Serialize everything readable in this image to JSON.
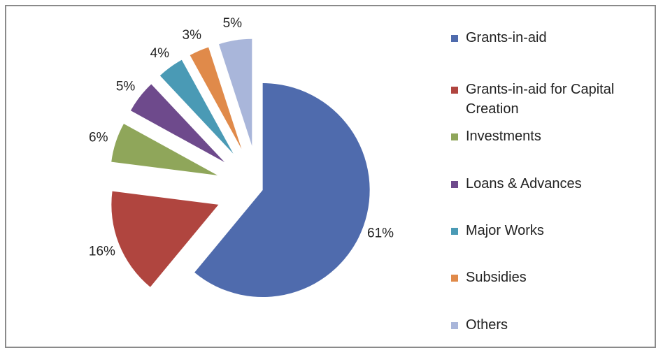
{
  "chart_data": {
    "type": "pie",
    "slices": [
      {
        "label": "Grants-in-aid",
        "value": 61,
        "value_label": "61%",
        "color": "#4F6BAD"
      },
      {
        "label": "Grants-in-aid for Capital Creation",
        "value": 16,
        "value_label": "16%",
        "color": "#B0453F"
      },
      {
        "label": "Investments",
        "value": 6,
        "value_label": "6%",
        "color": "#8FA65A"
      },
      {
        "label": "Loans & Advances",
        "value": 5,
        "value_label": "5%",
        "color": "#6E4A8C"
      },
      {
        "label": "Major Works",
        "value": 4,
        "value_label": "4%",
        "color": "#4A9AB5"
      },
      {
        "label": "Subsidies",
        "value": 3,
        "value_label": "3%",
        "color": "#E08A4A"
      },
      {
        "label": "Others",
        "value": 5,
        "value_label": "5%",
        "color": "#A9B6DA"
      }
    ],
    "exploded": true,
    "start_angle": "top, clockwise",
    "legend_position": "right"
  }
}
